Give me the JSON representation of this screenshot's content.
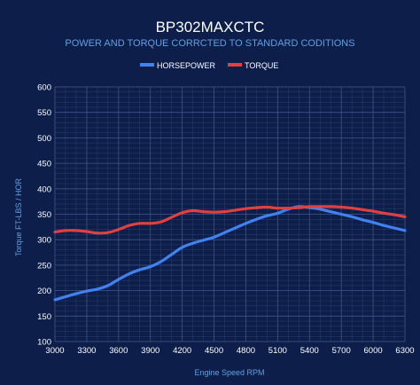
{
  "chart_data": {
    "type": "line",
    "title": "BP302MAXCTC",
    "subtitle": "POWER AND TORQUE CORRCTED TO STANDARD CODITIONS",
    "xlabel": "Engine Speed RPM",
    "ylabel": "Torque FT-LBS / HOR",
    "xlim": [
      3000,
      6300
    ],
    "ylim": [
      100,
      600
    ],
    "x_ticks": [
      3000,
      3300,
      3600,
      3900,
      4200,
      4500,
      4800,
      5100,
      5400,
      5700,
      6000,
      6300
    ],
    "y_ticks": [
      100,
      150,
      200,
      250,
      300,
      350,
      400,
      450,
      500,
      550,
      600
    ],
    "grid": true,
    "legend_position": "top",
    "series": [
      {
        "name": "HORSEPOWER",
        "color": "#3f82f0",
        "points": [
          [
            3000,
            182
          ],
          [
            3100,
            188
          ],
          [
            3200,
            194
          ],
          [
            3300,
            199
          ],
          [
            3400,
            203
          ],
          [
            3500,
            210
          ],
          [
            3600,
            222
          ],
          [
            3700,
            233
          ],
          [
            3800,
            241
          ],
          [
            3900,
            247
          ],
          [
            4000,
            257
          ],
          [
            4100,
            271
          ],
          [
            4200,
            285
          ],
          [
            4300,
            293
          ],
          [
            4400,
            299
          ],
          [
            4500,
            305
          ],
          [
            4600,
            314
          ],
          [
            4700,
            323
          ],
          [
            4800,
            332
          ],
          [
            4900,
            340
          ],
          [
            5000,
            347
          ],
          [
            5100,
            352
          ],
          [
            5200,
            360
          ],
          [
            5300,
            365
          ],
          [
            5400,
            363
          ],
          [
            5500,
            360
          ],
          [
            5600,
            355
          ],
          [
            5700,
            350
          ],
          [
            5800,
            345
          ],
          [
            5900,
            339
          ],
          [
            6000,
            334
          ],
          [
            6100,
            328
          ],
          [
            6200,
            323
          ],
          [
            6300,
            318
          ]
        ]
      },
      {
        "name": "TORQUE",
        "color": "#e2403f",
        "points": [
          [
            3000,
            315
          ],
          [
            3100,
            318
          ],
          [
            3200,
            318
          ],
          [
            3300,
            316
          ],
          [
            3400,
            313
          ],
          [
            3500,
            314
          ],
          [
            3600,
            320
          ],
          [
            3700,
            328
          ],
          [
            3800,
            332
          ],
          [
            3900,
            332
          ],
          [
            4000,
            335
          ],
          [
            4100,
            344
          ],
          [
            4200,
            353
          ],
          [
            4300,
            357
          ],
          [
            4400,
            355
          ],
          [
            4500,
            354
          ],
          [
            4600,
            355
          ],
          [
            4700,
            358
          ],
          [
            4800,
            361
          ],
          [
            4900,
            363
          ],
          [
            5000,
            364
          ],
          [
            5100,
            362
          ],
          [
            5200,
            362
          ],
          [
            5300,
            363
          ],
          [
            5400,
            365
          ],
          [
            5500,
            365
          ],
          [
            5600,
            365
          ],
          [
            5700,
            364
          ],
          [
            5800,
            362
          ],
          [
            5900,
            359
          ],
          [
            6000,
            356
          ],
          [
            6100,
            352
          ],
          [
            6200,
            349
          ],
          [
            6300,
            345
          ]
        ]
      }
    ]
  }
}
